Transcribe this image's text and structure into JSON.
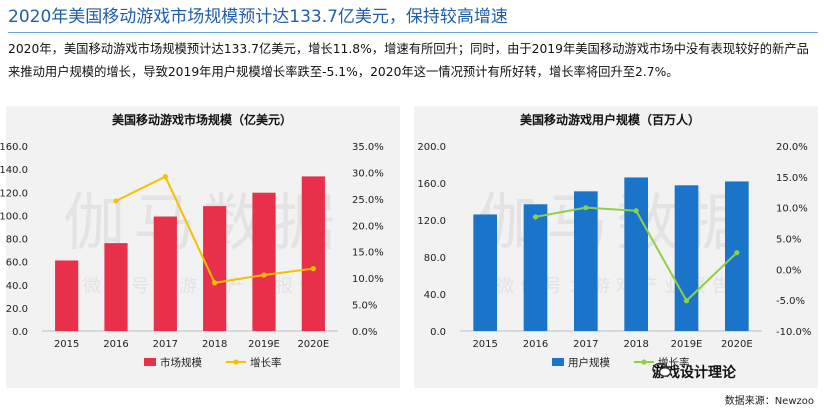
{
  "headline": "2020年美国移动游戏市场规模预计达133.7亿美元，保持较高增速",
  "paragraph": "2020年，美国移动游戏市场规模预计达133.7亿美元，增长11.8%，增速有所回升；同时，由于2019年美国移动游戏市场中没有表现较好的新产品来推动用户规模的增长，导致2019年用户规模增长率跌至-5.1%，2020年这一情况预计有所好转，增长率将回升至2.7%。",
  "watermark": {
    "main_text": "伽马数据",
    "sub_text": "微信号：游戏产业报告",
    "badge_text": "游戏设计理论"
  },
  "source": "数据来源：Newzoo",
  "colors": {
    "bar_left": "#e8304a",
    "bar_right": "#1a74c9",
    "line_left": "#f5c000",
    "line_right": "#8dd04a",
    "headline": "#1f5fa8"
  },
  "chart_data": [
    {
      "type": "bar",
      "title": "美国移动游戏市场规模（亿美元）",
      "categories": [
        "2015",
        "2016",
        "2017",
        "2018",
        "2019E",
        "2020E"
      ],
      "series": [
        {
          "name": "市场规模",
          "type": "bar",
          "axis": "left",
          "values": [
            61,
            76,
            99,
            108,
            119.6,
            133.7
          ]
        },
        {
          "name": "增长率",
          "type": "line",
          "axis": "right",
          "values": [
            null,
            24.6,
            29.2,
            9.1,
            10.6,
            11.8
          ]
        }
      ],
      "y_left": {
        "ticks": [
          "0.0",
          "20.0",
          "40.0",
          "60.0",
          "80.0",
          "100.0",
          "120.0",
          "140.0",
          "160.0"
        ],
        "min": 0,
        "max": 160
      },
      "y_right": {
        "ticks": [
          "0.0%",
          "5.0%",
          "10.0%",
          "15.0%",
          "20.0%",
          "25.0%",
          "30.0%",
          "35.0%"
        ],
        "min": 0,
        "max": 35
      },
      "legend_position": "bottom"
    },
    {
      "type": "bar",
      "title": "美国移动游戏用户规模（百万人）",
      "categories": [
        "2015",
        "2016",
        "2017",
        "2018",
        "2019E",
        "2020E"
      ],
      "series": [
        {
          "name": "用户规模",
          "type": "bar",
          "axis": "left",
          "values": [
            126,
            137,
            151,
            166,
            157.5,
            161.7
          ]
        },
        {
          "name": "增长率",
          "type": "line",
          "axis": "right",
          "values": [
            null,
            8.5,
            10.0,
            9.5,
            -5.1,
            2.7
          ]
        }
      ],
      "y_left": {
        "ticks": [
          "0.0",
          "40.0",
          "80.0",
          "120.0",
          "160.0",
          "200.0"
        ],
        "min": 0,
        "max": 200
      },
      "y_right": {
        "ticks": [
          "-10.0%",
          "-5.0%",
          "0.0%",
          "5.0%",
          "10.0%",
          "15.0%",
          "20.0%"
        ],
        "min": -10,
        "max": 20
      },
      "legend_position": "bottom"
    }
  ]
}
